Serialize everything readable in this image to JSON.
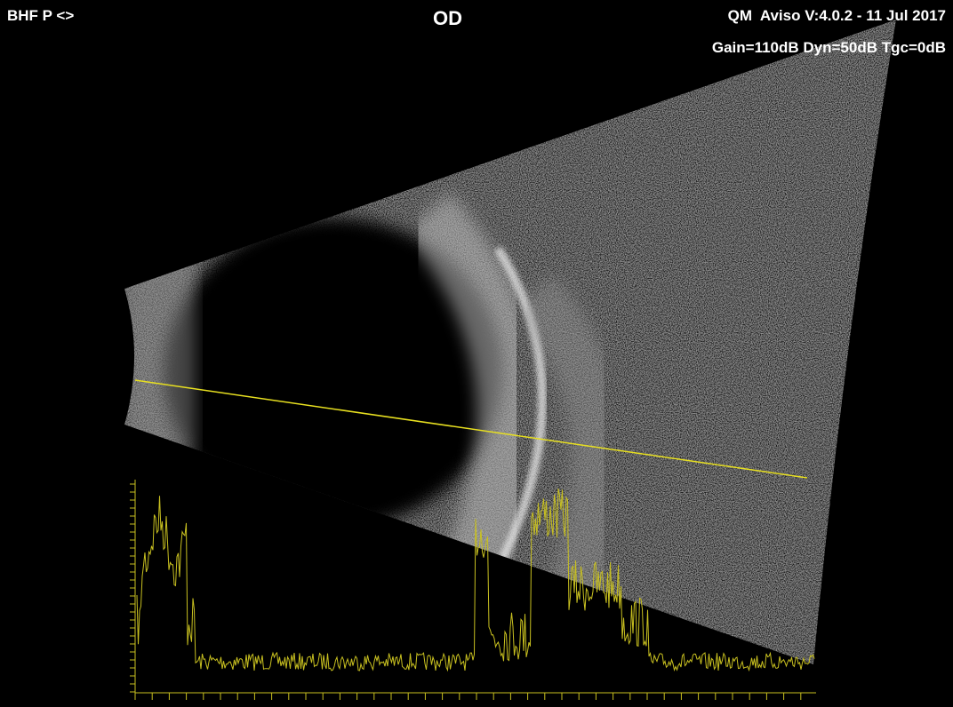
{
  "header": {
    "left": "BHF P <>",
    "center": "OD",
    "right_line1": "QM  Aviso V:4.0.2 - 11 Jul 2017",
    "right_line2": "Gain=110dB Dyn=50dB Tgc=0dB"
  }
}
